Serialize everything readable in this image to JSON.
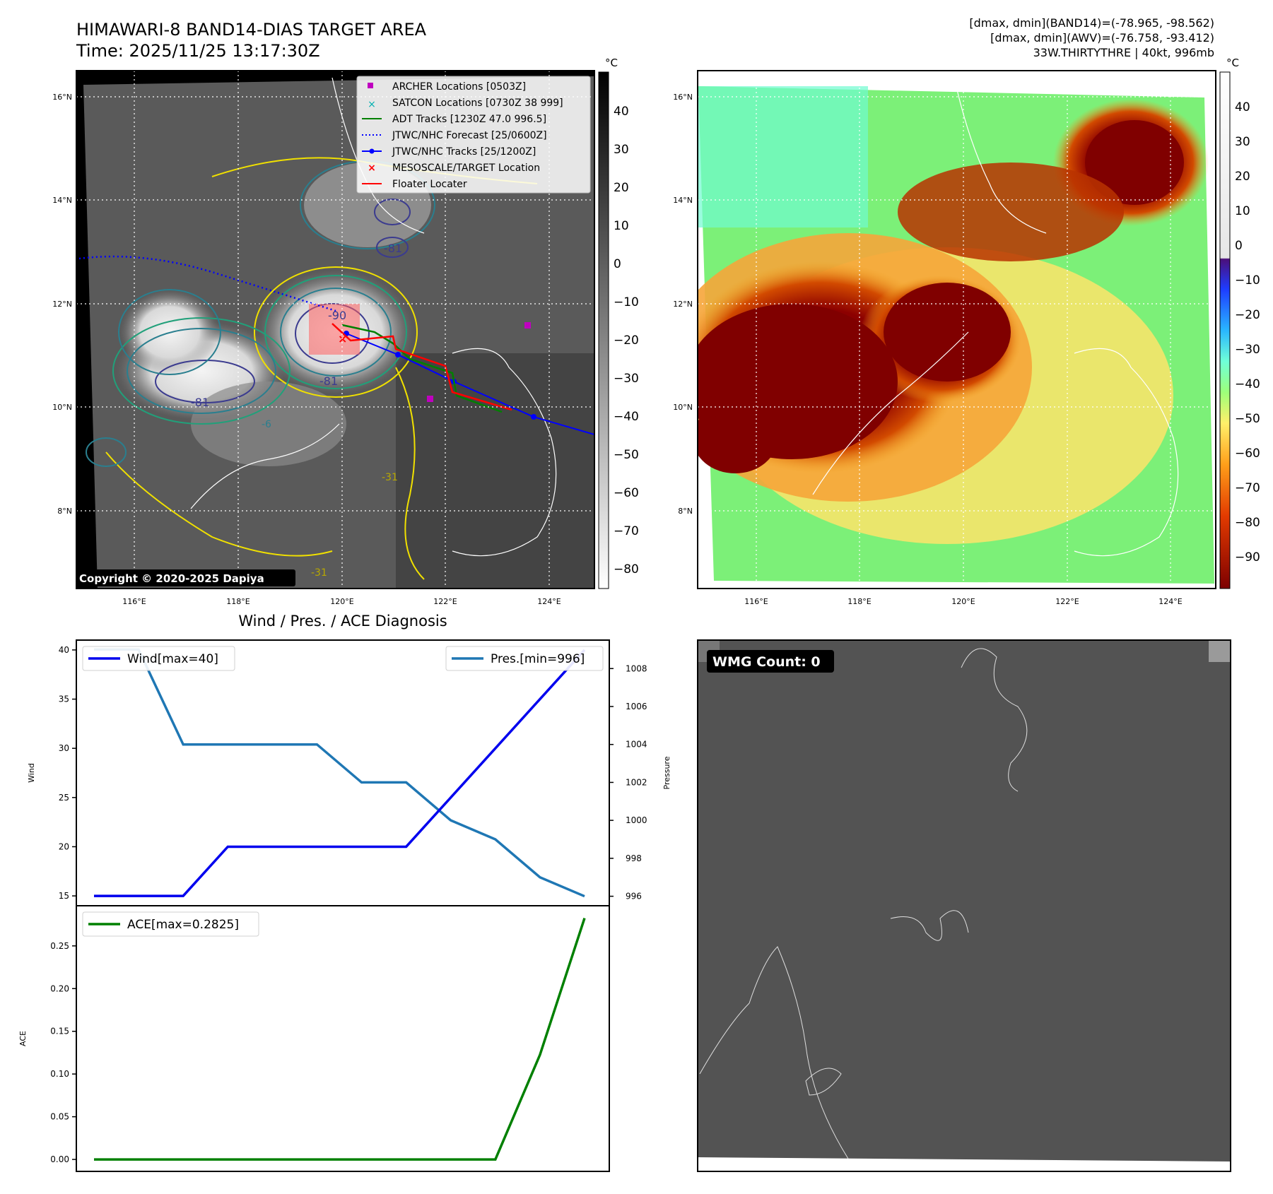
{
  "header": {
    "title_line1": "HIMAWARI-8 BAND14-DIAS TARGET AREA",
    "title_line2": "Time: 2025/11/25 13:17:30Z",
    "info_line1": "[dmax, dmin](BAND14)=(-78.965, -98.562)",
    "info_line2": "[dmax, dmin](AWV)=(-76.758, -93.412)",
    "info_line3": "33W.THIRTYTHRE | 40kt, 996mb"
  },
  "map": {
    "lat_ticks": [
      "16°N",
      "14°N",
      "12°N",
      "10°N",
      "8°N"
    ],
    "lon_ticks": [
      "116°E",
      "118°E",
      "120°E",
      "122°E",
      "124°E"
    ],
    "copyright": "Copyright © 2020-2025 Dapiya",
    "contour_labels": [
      "-90",
      "-81",
      "-81",
      "-81",
      "-31",
      "-31",
      "-6"
    ],
    "legend": [
      {
        "label": "ARCHER Locations [0503Z]",
        "marker": "square",
        "color": "#c000c0"
      },
      {
        "label": "SATCON Locations [0730Z 38 999]",
        "marker": "x",
        "color": "#00b0b0"
      },
      {
        "label": "ADT Tracks [1230Z 47.0 996.5]",
        "marker": "line",
        "color": "#008000"
      },
      {
        "label": "JTWC/NHC Forecast [25/0600Z]",
        "marker": "dotted",
        "color": "#0000ff"
      },
      {
        "label": "JTWC/NHC Tracks [25/1200Z]",
        "marker": "line-dot",
        "color": "#0000ff"
      },
      {
        "label": "MESOSCALE/TARGET Location",
        "marker": "x",
        "color": "#ff0000"
      },
      {
        "label": "Floater Locater",
        "marker": "line",
        "color": "#ff0000"
      }
    ]
  },
  "colorbar_left": {
    "unit": "°C",
    "ticks": [
      "40",
      "30",
      "20",
      "10",
      "0",
      "−10",
      "−20",
      "−30",
      "−40",
      "−50",
      "−60",
      "−70",
      "−80"
    ]
  },
  "colorbar_right": {
    "unit": "°C",
    "ticks": [
      "40",
      "30",
      "20",
      "10",
      "0",
      "−10",
      "−20",
      "−30",
      "−40",
      "−50",
      "−60",
      "−70",
      "−80",
      "−90"
    ]
  },
  "chart_data": [
    {
      "type": "line",
      "title": "Wind / Pres. / ACE Diagnosis",
      "ylabel": "Wind",
      "ylabel_right": "Pressure",
      "ylim": [
        14,
        41
      ],
      "ylim_right": [
        995.5,
        1009.5
      ],
      "yticks": [
        15,
        20,
        25,
        30,
        35,
        40
      ],
      "yticks_right": [
        996,
        998,
        1000,
        1002,
        1004,
        1006,
        1008
      ],
      "x": [
        0,
        1,
        2,
        3,
        4,
        5,
        6,
        7,
        8,
        9,
        10,
        11
      ],
      "series": [
        {
          "name": "Wind[max=40]",
          "axis": "left",
          "color": "#0000ee",
          "values": [
            15,
            15,
            15,
            20,
            20,
            20,
            20,
            20,
            25,
            30,
            35,
            40
          ]
        },
        {
          "name": "Pres.[min=996]",
          "axis": "right",
          "color": "#1f77b4",
          "values": [
            1009,
            1009,
            1004,
            1004,
            1004,
            1004,
            1002,
            1002,
            1000,
            999,
            997,
            996
          ]
        }
      ]
    },
    {
      "type": "line",
      "title": "",
      "ylabel": "ACE",
      "ylim": [
        -0.014,
        0.297
      ],
      "yticks": [
        "0.00",
        "0.05",
        "0.10",
        "0.15",
        "0.20",
        "0.25"
      ],
      "x": [
        0,
        1,
        2,
        3,
        4,
        5,
        6,
        7,
        8,
        9,
        10,
        11
      ],
      "series": [
        {
          "name": "ACE[max=0.2825]",
          "color": "#008000",
          "values": [
            0,
            0,
            0,
            0,
            0,
            0,
            0,
            0,
            0,
            0,
            0.1225,
            0.2825
          ]
        }
      ]
    }
  ],
  "wmg": {
    "label": "WMG Count: 0"
  }
}
